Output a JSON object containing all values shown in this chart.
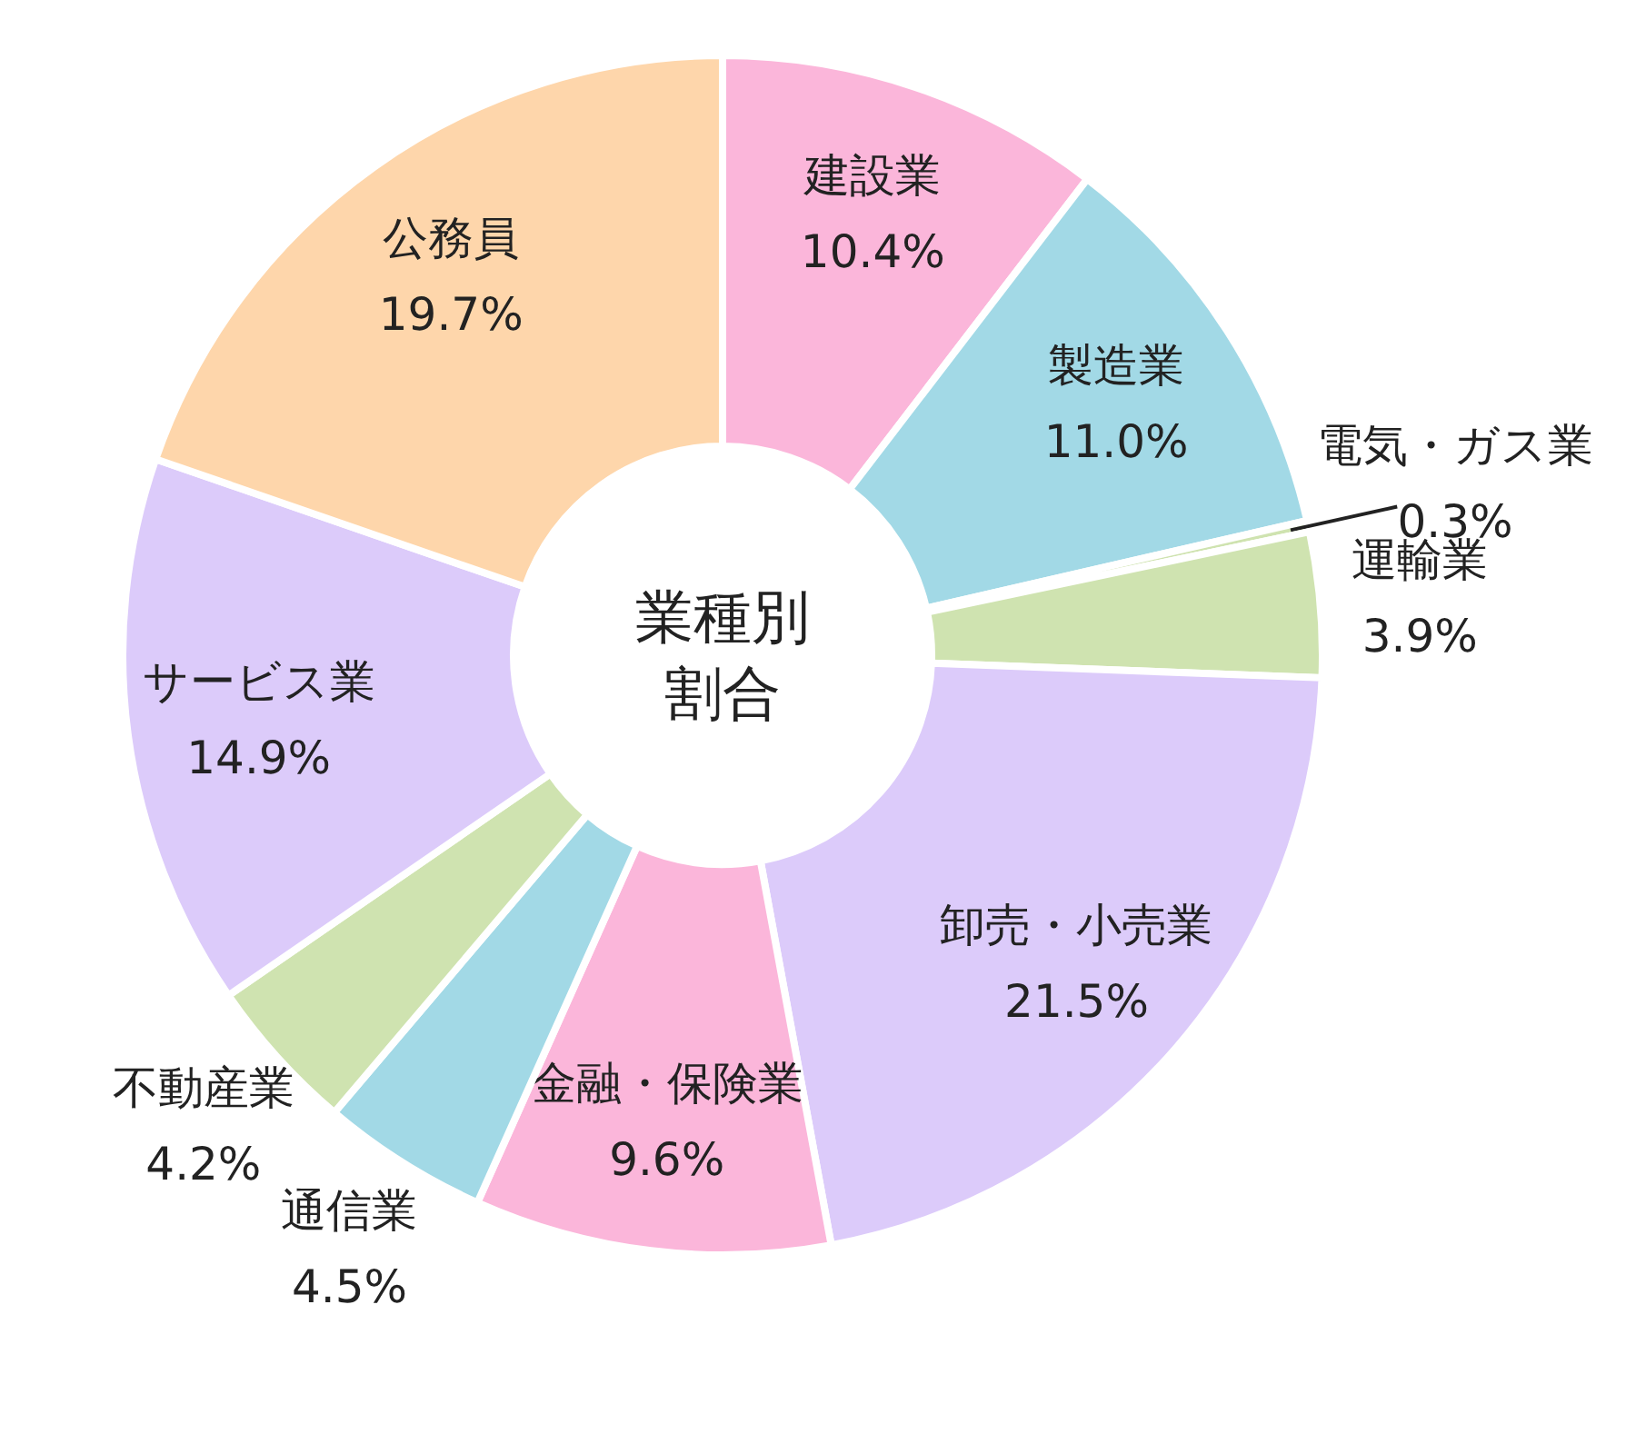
{
  "chart_data": {
    "type": "donut",
    "title": "業種別割合",
    "categories": [
      "建設業",
      "製造業",
      "電気・ガス業",
      "運輸業",
      "卸売・小売業",
      "金融・保険業",
      "通信業",
      "不動産業",
      "サービス業",
      "公務員"
    ],
    "values": [
      10.4,
      11.0,
      0.3,
      3.9,
      21.5,
      9.6,
      4.5,
      4.2,
      14.9,
      19.7
    ],
    "value_labels": [
      "10.4%",
      "11.0%",
      "0.3%",
      "3.9%",
      "21.5%",
      "9.6%",
      "4.5%",
      "4.2%",
      "14.9%",
      "19.7%"
    ],
    "colors": [
      "#fbb6da",
      "#a2d9e6",
      "#cfe3b0",
      "#cfe3b0",
      "#dccbfa",
      "#fbb6da",
      "#a2d9e6",
      "#cfe3b0",
      "#dccbfa",
      "#fed6ab"
    ]
  }
}
